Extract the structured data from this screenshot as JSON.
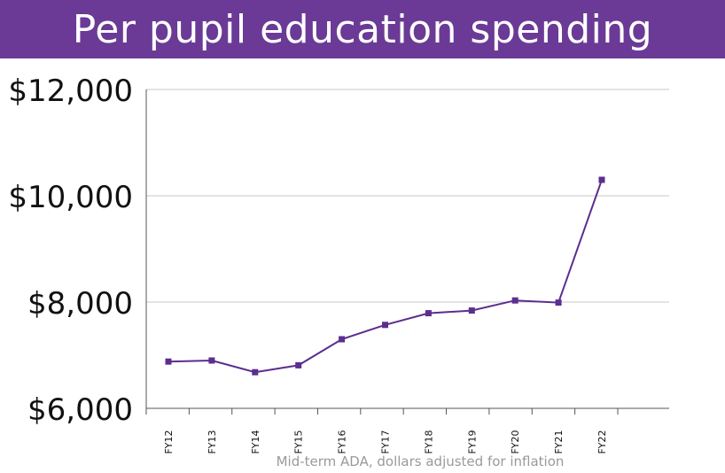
{
  "banner": {
    "title": "Per pupil education spending",
    "color": "#6b3a96"
  },
  "chart_data": {
    "type": "line",
    "title": "Per pupil education spending",
    "xlabel": "Mid-term ADA, dollars adjusted for inflation",
    "ylabel": "",
    "categories": [
      "FY12",
      "FY13",
      "FY14",
      "FY15",
      "FY16",
      "FY17",
      "FY18",
      "FY19",
      "FY20",
      "FY21",
      "FY22"
    ],
    "series": [
      {
        "values": [
          6880,
          6900,
          6680,
          6810,
          7300,
          7570,
          7790,
          7840,
          8030,
          7990,
          10300
        ],
        "color": "#5b2e8f"
      }
    ],
    "ylim": [
      6000,
      12000
    ],
    "yticks": [
      6000,
      8000,
      10000,
      12000
    ],
    "ytick_labels": [
      "$6,000",
      "$8,000",
      "$10,000",
      "$12,000"
    ],
    "grid": true,
    "marker": "square"
  }
}
